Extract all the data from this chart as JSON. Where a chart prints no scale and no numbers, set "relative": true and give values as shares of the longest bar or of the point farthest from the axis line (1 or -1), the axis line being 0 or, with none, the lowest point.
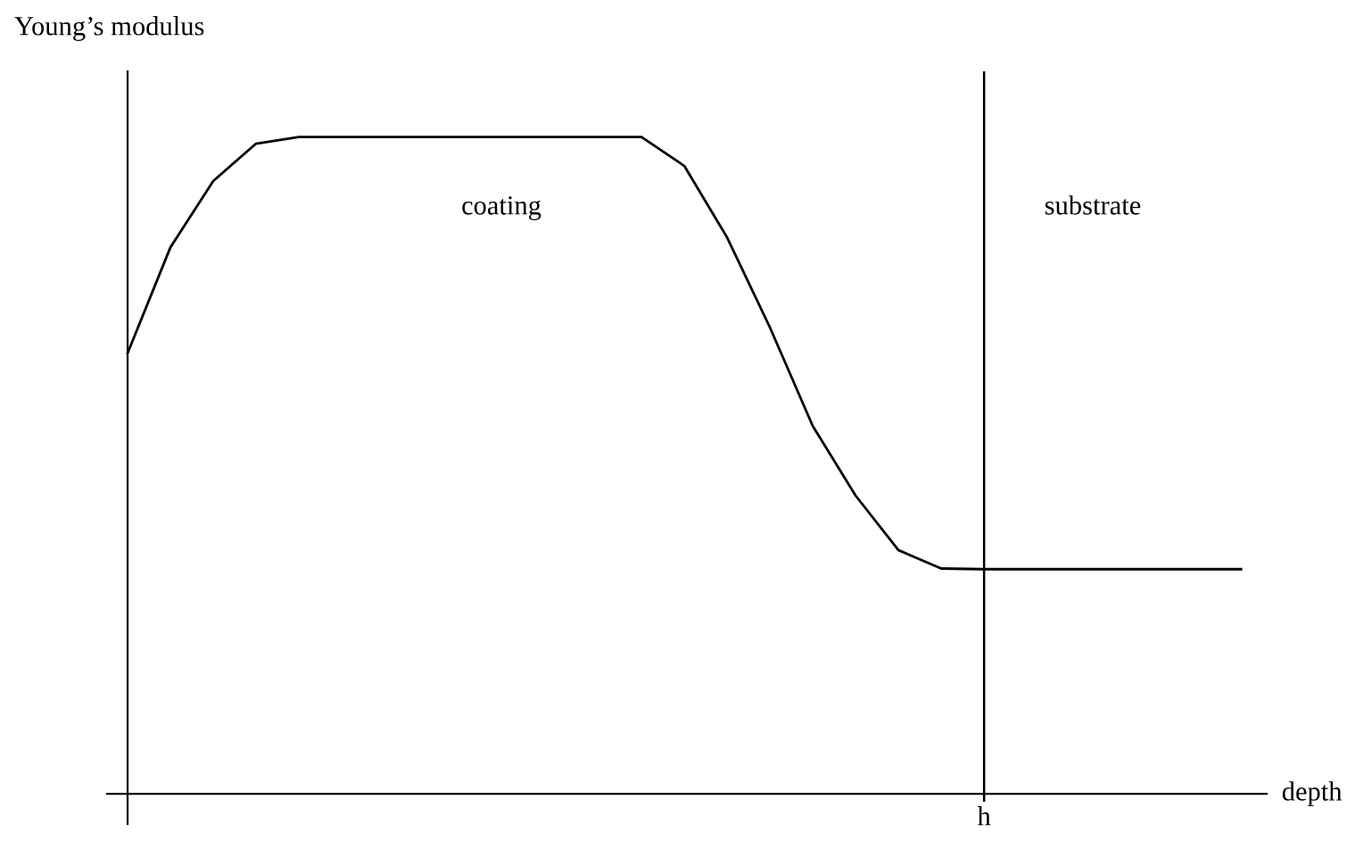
{
  "chart_data": {
    "type": "line",
    "relative": true,
    "ylabel": "Young’s modulus",
    "xlabel": "depth",
    "categories": [
      null,
      null,
      null,
      null,
      null,
      null,
      null,
      null,
      null,
      null,
      null,
      null,
      null,
      null,
      null,
      null,
      null,
      null,
      null,
      null,
      null,
      null,
      null,
      null,
      null,
      null,
      null
    ],
    "series": [
      {
        "color": "#000000",
        "values": [
          0.671,
          0.832,
          0.933,
          0.99,
          1,
          1,
          1,
          1,
          1,
          1,
          1,
          1,
          1,
          0.956,
          0.847,
          0.71,
          0.56,
          0.454,
          0.371,
          0.343,
          0.342,
          0.342,
          0.342,
          0.342,
          0.342,
          0.342,
          0.342
        ]
      }
    ],
    "annotations": [
      "coating",
      "substrate",
      "h"
    ],
    "legend": false,
    "marker": "none",
    "line_style": "solid"
  }
}
